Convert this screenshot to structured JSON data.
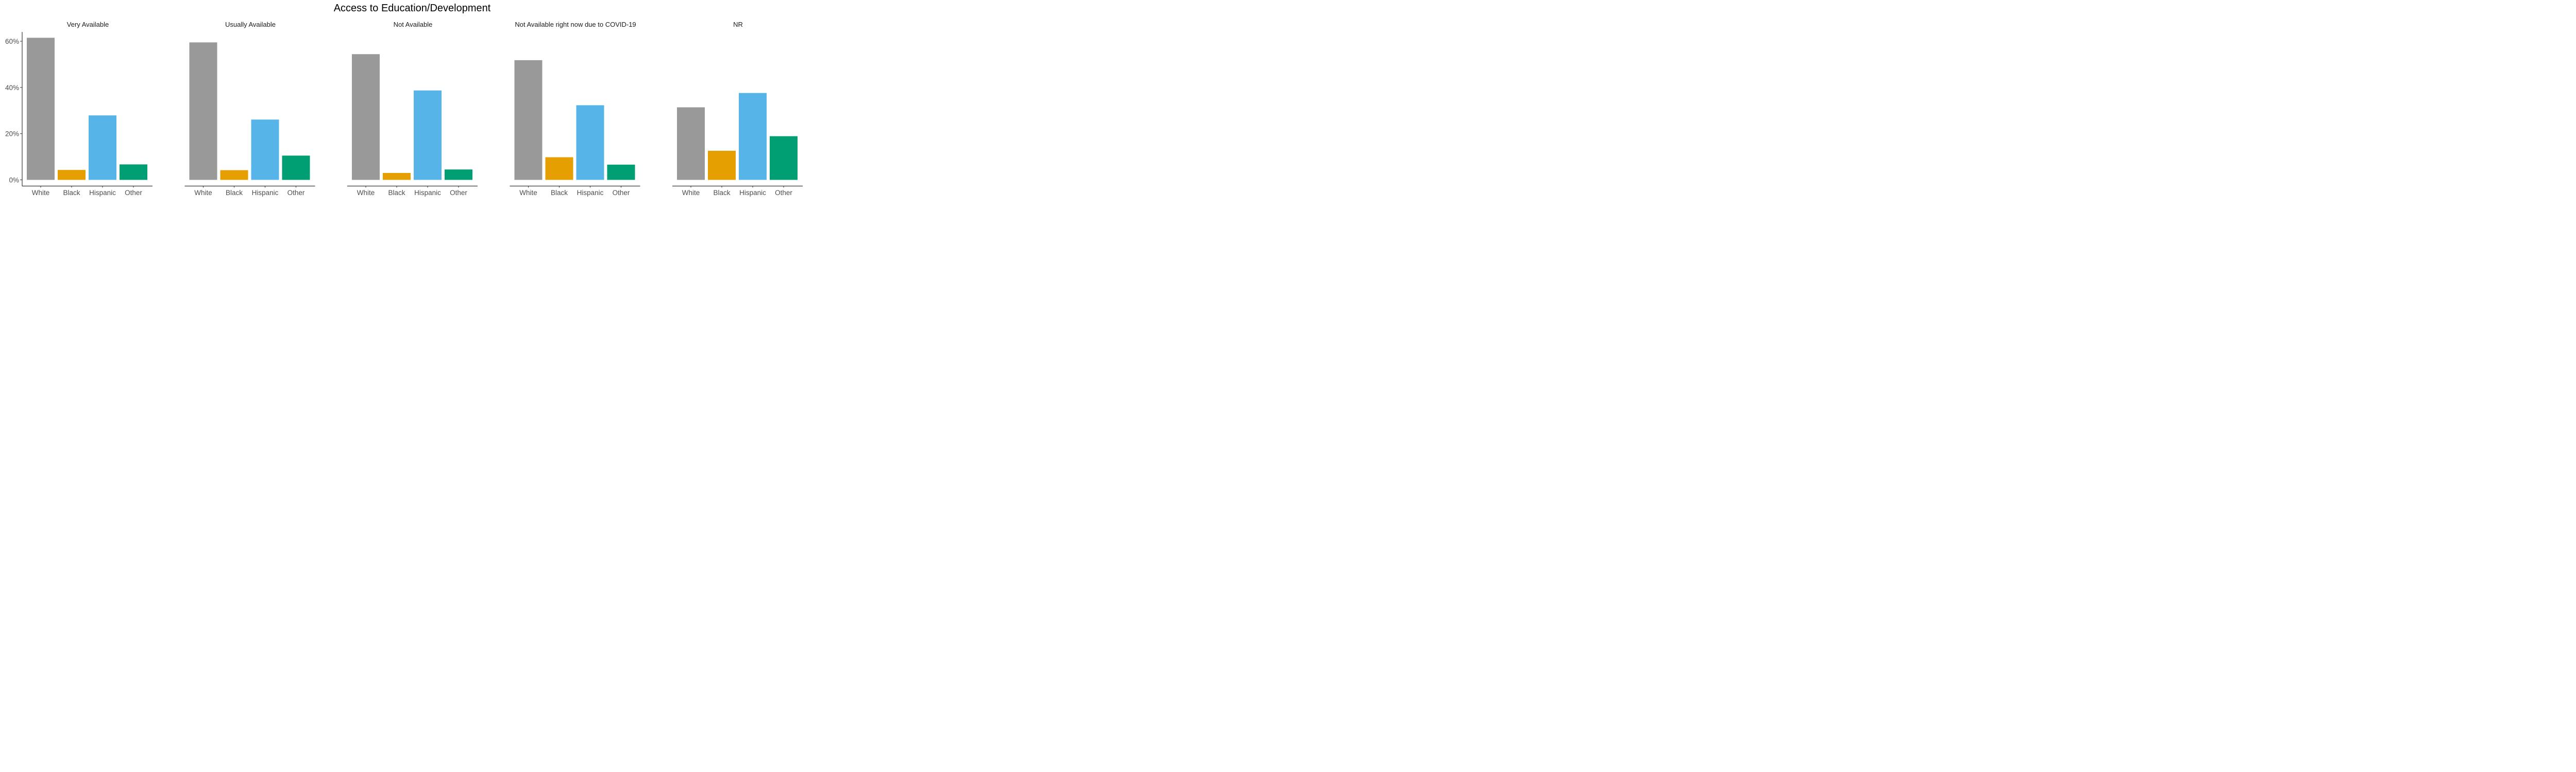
{
  "chart_data": {
    "type": "bar",
    "title": "Access to Education/Development",
    "xlabel": "",
    "ylabel": "",
    "ylim": [
      0,
      64
    ],
    "y_ticks": [
      0,
      20,
      40,
      60
    ],
    "y_tick_labels": [
      "0%",
      "20%",
      "40%",
      "60%"
    ],
    "grid": false,
    "legend": "none",
    "categories": [
      "White",
      "Black",
      "Hispanic",
      "Other"
    ],
    "category_colors": [
      "#999999",
      "#E69F00",
      "#56B4E9",
      "#009E73"
    ],
    "panels": [
      {
        "name": "Very Available",
        "values": [
          61.5,
          4.3,
          27.9,
          6.7
        ]
      },
      {
        "name": "Usually Available",
        "values": [
          59.5,
          4.2,
          26.1,
          10.5
        ]
      },
      {
        "name": "Not Available",
        "values": [
          54.4,
          3.0,
          38.7,
          4.5
        ]
      },
      {
        "name": "Not Available right now due to COVID-19",
        "values": [
          51.8,
          9.8,
          32.3,
          6.6
        ]
      },
      {
        "name": "NR",
        "values": [
          31.4,
          12.6,
          37.6,
          18.9
        ]
      }
    ]
  }
}
